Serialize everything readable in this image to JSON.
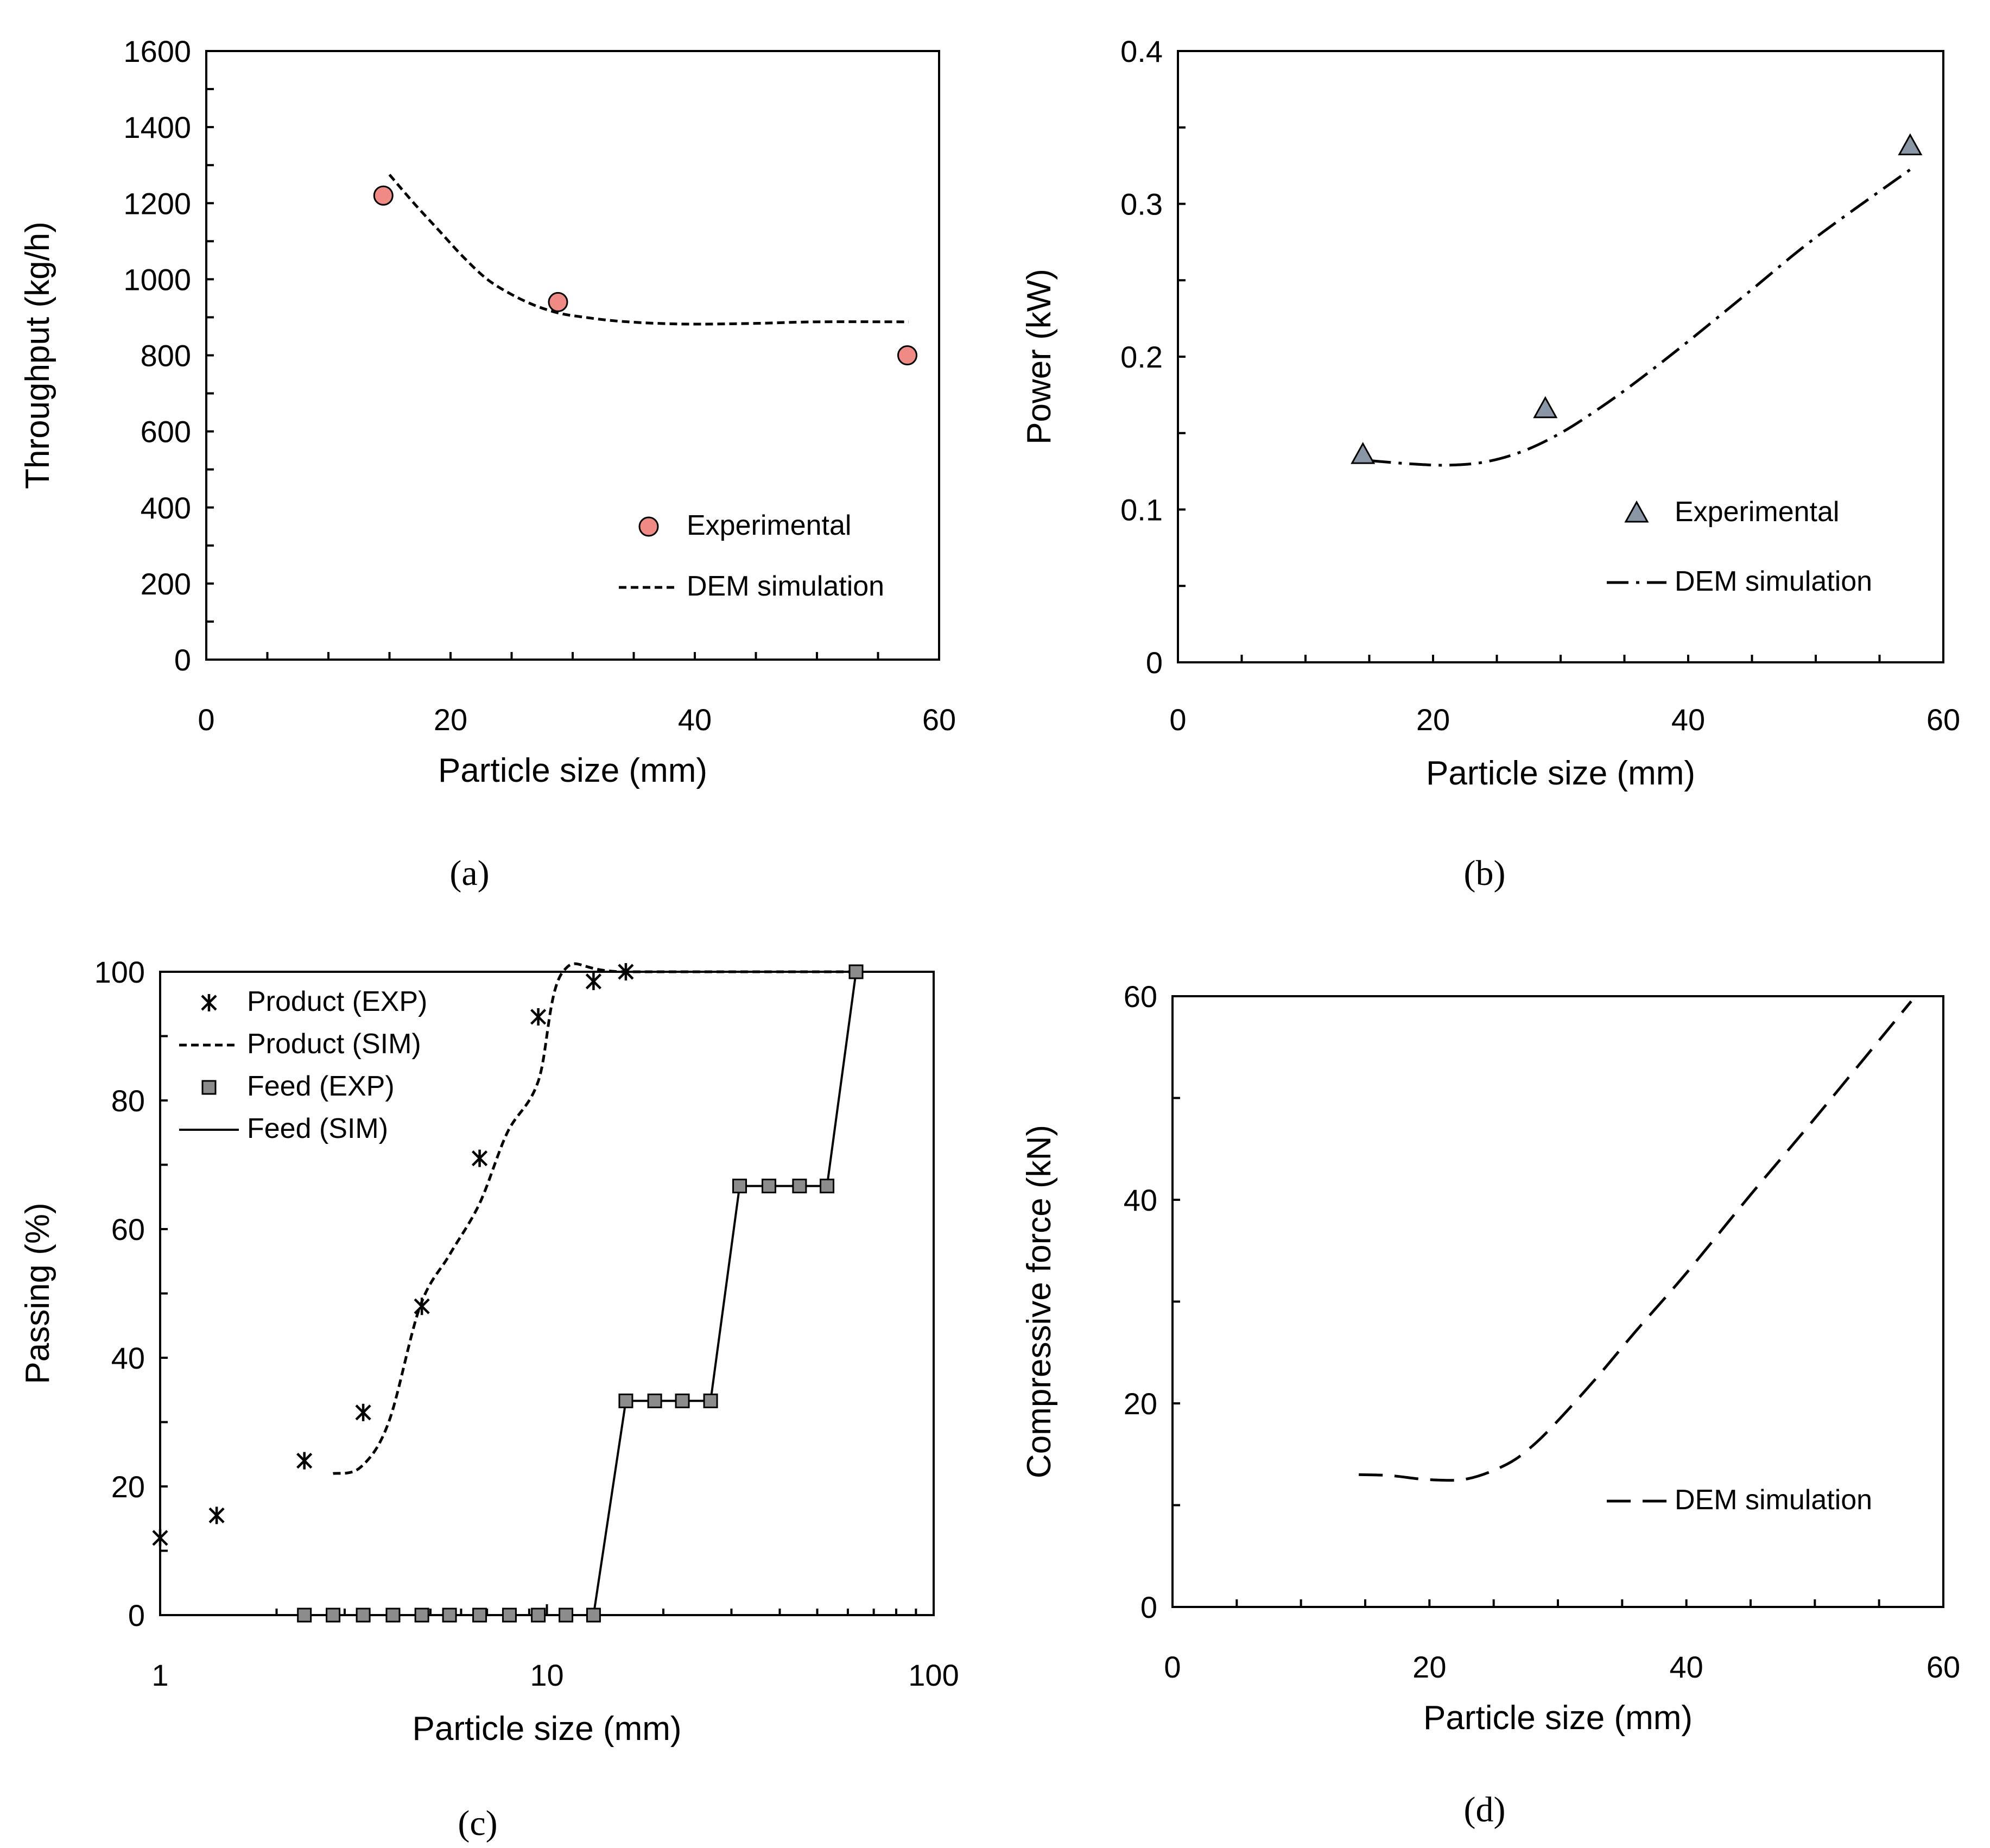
{
  "figure": {
    "colors": {
      "experimental_a": "#f08a85",
      "experimental_b": "#8a96a6",
      "feed_marker": "#8c8c8c",
      "line": "#000000"
    },
    "panels": [
      "a",
      "b",
      "c",
      "d"
    ]
  },
  "chart_data": [
    {
      "id": "a",
      "type": "scatter",
      "caption": "(a)",
      "xlabel": "Particle size (mm)",
      "ylabel": "Throughput (kg/h)",
      "xlim": [
        0,
        60
      ],
      "ylim": [
        0,
        1600
      ],
      "xticks": [
        0,
        20,
        40,
        60
      ],
      "yticks": [
        0,
        200,
        400,
        600,
        800,
        1000,
        1200,
        1400,
        1600
      ],
      "series": [
        {
          "name": "Experimental",
          "kind": "markers",
          "marker": "circle",
          "x": [
            14.5,
            28.8,
            57.4
          ],
          "y": [
            1220,
            940,
            800
          ]
        },
        {
          "name": "DEM simulation",
          "kind": "line",
          "dash": "dashed",
          "x": [
            15,
            17,
            19,
            21,
            23,
            25,
            27,
            29,
            31,
            33,
            35,
            37,
            40,
            45,
            50,
            57.5
          ],
          "y": [
            1275,
            1200,
            1130,
            1060,
            1000,
            960,
            930,
            910,
            900,
            892,
            887,
            884,
            882,
            884,
            888,
            888
          ]
        }
      ]
    },
    {
      "id": "b",
      "type": "scatter",
      "caption": "(b)",
      "xlabel": "Particle size (mm)",
      "ylabel": "Power (kW)",
      "xlim": [
        0,
        60
      ],
      "ylim": [
        0,
        0.4
      ],
      "xticks": [
        0,
        20,
        40,
        60
      ],
      "yticks": [
        "0",
        "0.1",
        "0.2",
        "0.3",
        "0.4"
      ],
      "series": [
        {
          "name": "Experimental",
          "kind": "markers",
          "marker": "triangle",
          "x": [
            14.5,
            28.8,
            57.4
          ],
          "y": [
            0.136,
            0.166,
            0.338
          ]
        },
        {
          "name": "DEM simulation",
          "kind": "line",
          "dash": "dashdot",
          "x": [
            15,
            18,
            21,
            24,
            27,
            30,
            33,
            36,
            40,
            45,
            50,
            57.5
          ],
          "y": [
            0.132,
            0.13,
            0.129,
            0.131,
            0.138,
            0.15,
            0.166,
            0.184,
            0.21,
            0.244,
            0.278,
            0.323
          ]
        }
      ]
    },
    {
      "id": "c",
      "type": "scatter",
      "caption": "(c)",
      "xlabel": "Particle size (mm)",
      "ylabel": "Passing (%)",
      "xscale": "log",
      "xlim": [
        1,
        100
      ],
      "ylim": [
        0,
        100
      ],
      "xticks": [
        1,
        10,
        100
      ],
      "yticks": [
        0,
        20,
        40,
        60,
        80,
        100
      ],
      "series": [
        {
          "name": "Product (EXP)",
          "kind": "markers",
          "marker": "asterisk",
          "x": [
            1.0,
            1.4,
            2.36,
            3.35,
            4.75,
            6.7,
            9.5,
            13.2,
            16.0
          ],
          "y": [
            12,
            15.5,
            24,
            31.5,
            48,
            71,
            93,
            98.5,
            100
          ]
        },
        {
          "name": "Product (SIM)",
          "kind": "line",
          "dash": "dashed",
          "x": [
            2.8,
            3.3,
            3.9,
            4.7,
            5.6,
            6.7,
            7.9,
            9.5,
            11.0,
            16.0,
            64.0
          ],
          "y": [
            22,
            23,
            30,
            48,
            56,
            64,
            75,
            83,
            100,
            100,
            100
          ]
        },
        {
          "name": "Feed (EXP)",
          "kind": "markers",
          "marker": "square",
          "x": [
            2.36,
            2.8,
            3.35,
            4.0,
            4.75,
            5.6,
            6.7,
            8.0,
            9.5,
            11.2,
            13.2,
            16.0,
            19.0,
            22.4,
            26.5,
            31.5,
            37.5,
            45.0,
            53.0,
            63.0
          ],
          "y": [
            0,
            0,
            0,
            0,
            0,
            0,
            0,
            0,
            0,
            0,
            0,
            33.3,
            33.3,
            33.3,
            33.3,
            66.7,
            66.7,
            66.7,
            66.7,
            100
          ]
        },
        {
          "name": "Feed (SIM)",
          "kind": "line",
          "dash": "solid",
          "x": [
            2.36,
            13.2,
            16.0,
            26.5,
            31.5,
            53.0,
            63.0
          ],
          "y": [
            0,
            0,
            33.3,
            33.3,
            66.7,
            66.7,
            100
          ]
        }
      ]
    },
    {
      "id": "d",
      "type": "line",
      "caption": "(d)",
      "xlabel": "Particle size (mm)",
      "ylabel": "Compressive force (kN)",
      "xlim": [
        0,
        60
      ],
      "ylim": [
        0,
        60
      ],
      "xticks": [
        0,
        20,
        40,
        60
      ],
      "yticks": [
        0,
        20,
        40,
        60
      ],
      "series": [
        {
          "name": "DEM simulation",
          "kind": "line",
          "dash": "longdash",
          "x": [
            14.5,
            17,
            20,
            23,
            26,
            28,
            30,
            33,
            36,
            40,
            45,
            50,
            57.5
          ],
          "y": [
            13.0,
            12.9,
            12.5,
            12.6,
            14.0,
            15.8,
            18.3,
            22.5,
            27.0,
            32.8,
            40.5,
            48.0,
            59.5
          ]
        }
      ]
    }
  ]
}
